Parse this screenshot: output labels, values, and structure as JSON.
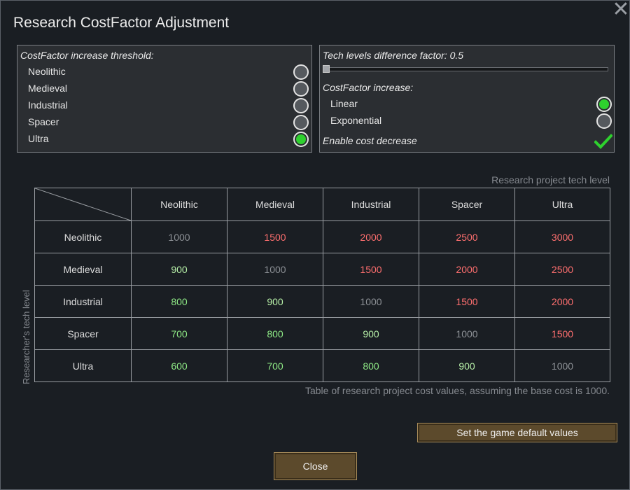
{
  "window": {
    "title": "Research CostFactor Adjustment",
    "close_icon": "close-icon"
  },
  "threshold_panel": {
    "title": "CostFactor increase threshold:",
    "options": [
      {
        "label": "Neolithic",
        "selected": false
      },
      {
        "label": "Medieval",
        "selected": false
      },
      {
        "label": "Industrial",
        "selected": false
      },
      {
        "label": "Spacer",
        "selected": false
      },
      {
        "label": "Ultra",
        "selected": true
      }
    ]
  },
  "factor_panel": {
    "slider_label": "Tech levels difference factor: 0.5",
    "slider_value": 0.5,
    "increase_title": "CostFactor increase:",
    "increase_options": [
      {
        "label": "Linear",
        "selected": true
      },
      {
        "label": "Exponential",
        "selected": false
      }
    ],
    "cost_decrease_label": "Enable cost decrease",
    "cost_decrease_checked": true
  },
  "table": {
    "column_axis_label": "Research project tech level",
    "row_axis_label": "Researcher's tech level",
    "columns": [
      "Neolithic",
      "Medieval",
      "Industrial",
      "Spacer",
      "Ultra"
    ],
    "rows": [
      {
        "label": "Neolithic",
        "values": [
          "1000",
          "1500",
          "2000",
          "2500",
          "3000"
        ]
      },
      {
        "label": "Medieval",
        "values": [
          "900",
          "1000",
          "1500",
          "2000",
          "2500"
        ]
      },
      {
        "label": "Industrial",
        "values": [
          "800",
          "900",
          "1000",
          "1500",
          "2000"
        ]
      },
      {
        "label": "Spacer",
        "values": [
          "700",
          "800",
          "900",
          "1000",
          "1500"
        ]
      },
      {
        "label": "Ultra",
        "values": [
          "600",
          "700",
          "800",
          "900",
          "1000"
        ]
      }
    ],
    "note": "Table of research project cost values, assuming the base cost is 1000."
  },
  "buttons": {
    "default_label": "Set the game default values",
    "close_label": "Close"
  },
  "colors": {
    "accent_green": "#2ed12e",
    "increase_red": "#ff6f6f",
    "decrease_green": "#b7f0a8",
    "button_brown": "#5c4a2c"
  }
}
